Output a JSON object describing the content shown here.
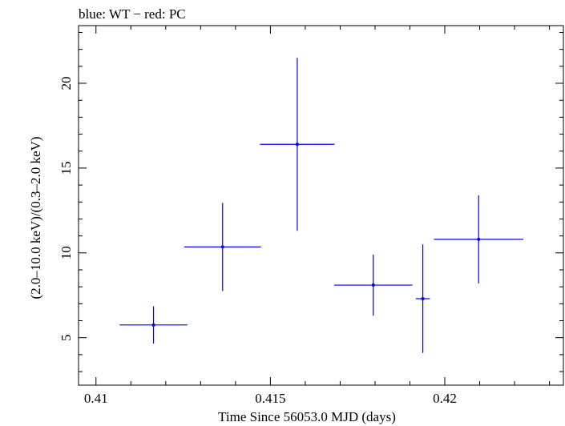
{
  "chart_data": {
    "type": "scatter",
    "title": "blue: WT − red: PC",
    "xlabel": "Time Since 56053.0 MJD (days)",
    "ylabel": "(2.0–10.0 keV)/(0.3–2.0 keV)",
    "xlim": [
      0.4095,
      0.4234
    ],
    "ylim": [
      2.2,
      23.4
    ],
    "x_ticks": [
      {
        "value": 0.41,
        "label": "0.41"
      },
      {
        "value": 0.415,
        "label": "0.415"
      },
      {
        "value": 0.42,
        "label": "0.42"
      }
    ],
    "y_ticks": [
      {
        "value": 5,
        "label": "5"
      },
      {
        "value": 10,
        "label": "10"
      },
      {
        "value": 15,
        "label": "15"
      },
      {
        "value": 20,
        "label": "20"
      }
    ],
    "series": [
      {
        "name": "WT",
        "color": "#0000ee",
        "points": [
          {
            "x": 0.41165,
            "xerr_lo": 0.00097,
            "xerr_hi": 0.00097,
            "y": 5.75,
            "yerr_lo": 1.1,
            "yerr_hi": 1.1
          },
          {
            "x": 0.41363,
            "xerr_lo": 0.0011,
            "xerr_hi": 0.0011,
            "y": 10.35,
            "yerr_lo": 2.6,
            "yerr_hi": 2.6
          },
          {
            "x": 0.41577,
            "xerr_lo": 0.00107,
            "xerr_hi": 0.00107,
            "y": 16.4,
            "yerr_lo": 5.1,
            "yerr_hi": 5.1
          },
          {
            "x": 0.41795,
            "xerr_lo": 0.00112,
            "xerr_hi": 0.00112,
            "y": 8.1,
            "yerr_lo": 1.8,
            "yerr_hi": 1.8
          },
          {
            "x": 0.41937,
            "xerr_lo": 0.0002,
            "xerr_hi": 0.0002,
            "y": 7.3,
            "yerr_lo": 3.2,
            "yerr_hi": 3.2
          },
          {
            "x": 0.42097,
            "xerr_lo": 0.00128,
            "xerr_hi": 0.00128,
            "y": 10.8,
            "yerr_lo": 2.6,
            "yerr_hi": 2.6
          }
        ]
      }
    ]
  }
}
